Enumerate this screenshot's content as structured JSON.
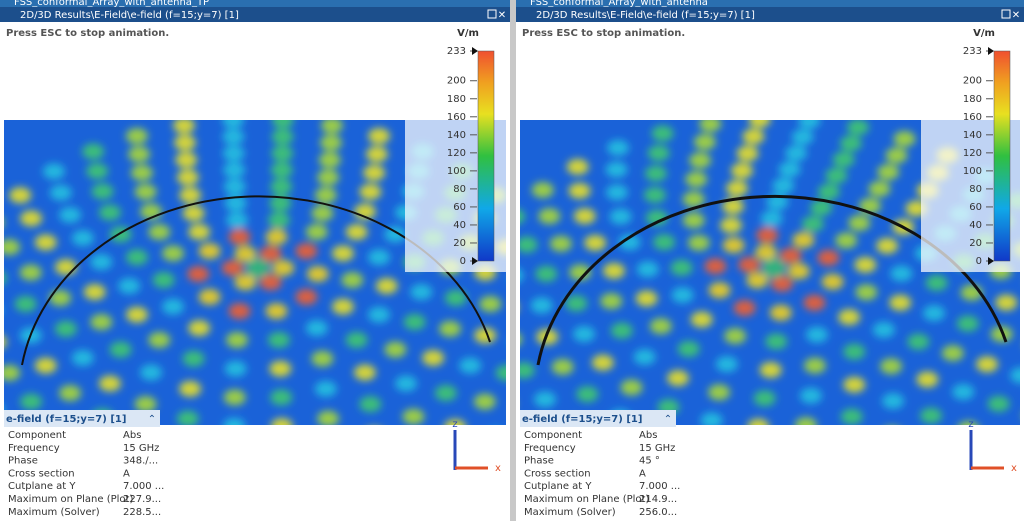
{
  "windows": [
    {
      "title": "FSS_conformal_Array_with_antenna_TP",
      "header": "2D/3D Results\\E-Field\\e-field (f=15;y=7) [1]",
      "hint": "Press ESC to stop animation.",
      "colorbar": {
        "unit": "V/m",
        "ticks": [
          233,
          200,
          180,
          160,
          140,
          120,
          100,
          80,
          60,
          40,
          20,
          0
        ]
      },
      "info": {
        "title": "e-field (f=15;y=7) [1]",
        "rows": [
          [
            "Component",
            "Abs"
          ],
          [
            "Frequency",
            "15 GHz"
          ],
          [
            "Phase",
            "348./..."
          ],
          [
            "Cross section",
            "A"
          ],
          [
            "Cutplane at Y",
            "7.000 ..."
          ],
          [
            "Maximum on Plane (Plot)",
            "227.9..."
          ],
          [
            "Maximum (Solver)",
            "228.5..."
          ]
        ]
      },
      "axis_labels": [
        "z",
        "x"
      ]
    },
    {
      "title": "FSS_conformal_Array_with_antenna",
      "header": "2D/3D Results\\E-Field\\e-field (f=15;y=7) [1]",
      "hint": "Press ESC to stop animation.",
      "colorbar": {
        "unit": "V/m",
        "ticks": [
          233,
          200,
          180,
          160,
          140,
          120,
          100,
          80,
          60,
          40,
          20,
          0
        ]
      },
      "info": {
        "title": "e-field (f=15;y=7) [1]",
        "rows": [
          [
            "Component",
            "Abs"
          ],
          [
            "Frequency",
            "15 GHz"
          ],
          [
            "Phase",
            "45 °"
          ],
          [
            "Cross section",
            "A"
          ],
          [
            "Cutplane at Y",
            "7.000 ..."
          ],
          [
            "Maximum on Plane (Plot)",
            "214.9..."
          ],
          [
            "Maximum (Solver)",
            "256.0..."
          ]
        ]
      },
      "axis_labels": [
        "z",
        "x"
      ]
    }
  ]
}
